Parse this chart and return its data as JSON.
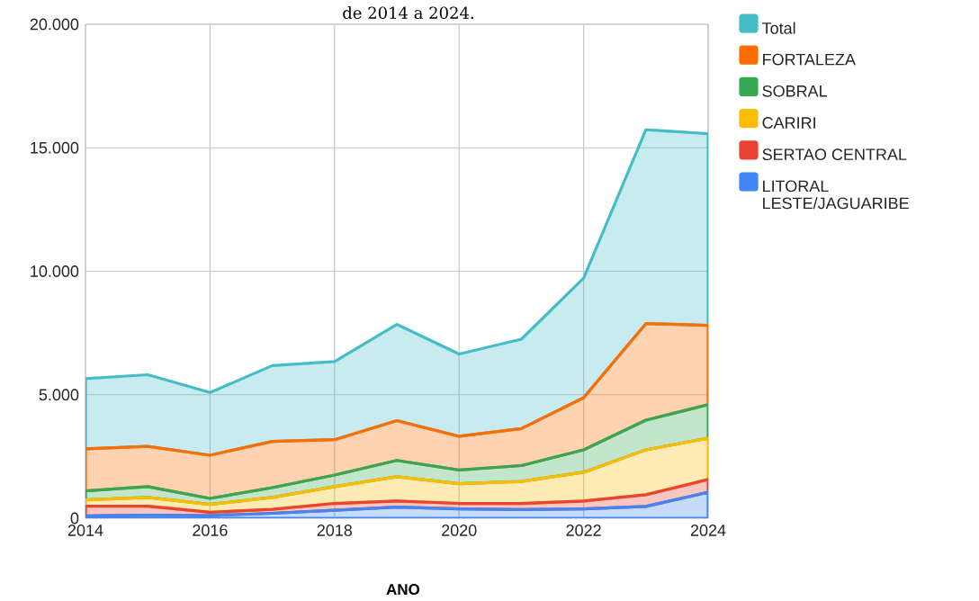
{
  "chart_data": {
    "type": "area",
    "stacked": true,
    "title": "de 2014 a 2024.",
    "xlabel": "ANO",
    "x": [
      2014,
      2015,
      2016,
      2017,
      2018,
      2019,
      2020,
      2021,
      2022,
      2023,
      2024
    ],
    "series": [
      {
        "name": "LITORAL LESTE/JAGUARIBE",
        "color": "#4285f4",
        "values": [
          100,
          120,
          110,
          200,
          320,
          450,
          380,
          350,
          380,
          480,
          1050
        ]
      },
      {
        "name": "SERTAO CENTRAL",
        "color": "#ea4335",
        "values": [
          390,
          370,
          130,
          160,
          280,
          250,
          220,
          250,
          320,
          470,
          520
        ]
      },
      {
        "name": "CARIRI",
        "color": "#fbbc04",
        "values": [
          250,
          350,
          320,
          480,
          680,
          980,
          800,
          890,
          1160,
          1820,
          1670
        ]
      },
      {
        "name": "SOBRAL",
        "color": "#34a853",
        "values": [
          370,
          440,
          240,
          400,
          470,
          660,
          550,
          640,
          910,
          1200,
          1360
        ]
      },
      {
        "name": "FORTALEZA",
        "color": "#ff6d01",
        "values": [
          1700,
          1630,
          1750,
          1870,
          1430,
          1610,
          1370,
          1500,
          2110,
          3910,
          3210
        ]
      },
      {
        "name": "Total",
        "color": "#46bdc6",
        "values": [
          2840,
          2900,
          2540,
          3070,
          3160,
          3900,
          3330,
          3620,
          4840,
          7850,
          7760
        ]
      }
    ],
    "xlim": [
      2014,
      2024
    ],
    "ylim": [
      0,
      20000
    ],
    "xticks": [
      2014,
      2016,
      2018,
      2020,
      2022,
      2024
    ],
    "yticks": [
      {
        "value": 0,
        "label": "0"
      },
      {
        "value": 5000,
        "label": "5.000"
      },
      {
        "value": 10000,
        "label": "10.000"
      },
      {
        "value": 15000,
        "label": "15.000"
      },
      {
        "value": 20000,
        "label": "20.000"
      }
    ],
    "grid": true,
    "legend": "top right"
  }
}
